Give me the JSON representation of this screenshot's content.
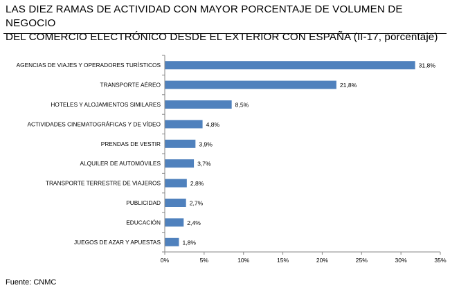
{
  "header": {
    "title_line1": "LAS DIEZ RAMAS DE ACTIVIDAD CON MAYOR PORCENTAJE DE VOLUMEN DE NEGOCIO",
    "title_line2": "DEL COMERCIO ELECTRÓNICO DESDE EL EXTERIOR CON ESPAÑA (II-17, porcentaje)"
  },
  "footer": {
    "source": "Fuente: CNMC"
  },
  "colors": {
    "bar": "#4f81bd",
    "axis": "#868686"
  },
  "chart_data": {
    "type": "bar",
    "orientation": "horizontal",
    "title": "LAS DIEZ RAMAS DE ACTIVIDAD CON MAYOR PORCENTAJE DE VOLUMEN DE NEGOCIO DEL COMERCIO ELECTRÓNICO DESDE EL EXTERIOR CON ESPAÑA (II-17, porcentaje)",
    "categories": [
      "AGENCIAS DE VIAJES Y OPERADORES TURÍSTICOS",
      "TRANSPORTE AÉREO",
      "HOTELES Y ALOJAMIENTOS SIMILARES",
      "ACTIVIDADES CINEMATOGRÁFICAS Y DE VÍDEO",
      "PRENDAS DE VESTIR",
      "ALQUILER DE AUTOMÓVILES",
      "TRANSPORTE TERRESTRE DE VIAJEROS",
      "PUBLICIDAD",
      "EDUCACIÓN",
      "JUEGOS DE AZAR Y APUESTAS"
    ],
    "values": [
      31.8,
      21.8,
      8.5,
      4.8,
      3.9,
      3.7,
      2.8,
      2.7,
      2.4,
      1.8
    ],
    "value_labels": [
      "31,8%",
      "21,8%",
      "8,5%",
      "4,8%",
      "3,9%",
      "3,7%",
      "2,8%",
      "2,7%",
      "2,4%",
      "1,8%"
    ],
    "xlim": [
      0,
      35
    ],
    "xticks": [
      0,
      5,
      10,
      15,
      20,
      25,
      30,
      35
    ],
    "xtick_labels": [
      "0%",
      "5%",
      "10%",
      "15%",
      "20%",
      "25%",
      "30%",
      "35%"
    ],
    "xlabel": "",
    "ylabel": "",
    "grid": false,
    "legend": "none"
  }
}
